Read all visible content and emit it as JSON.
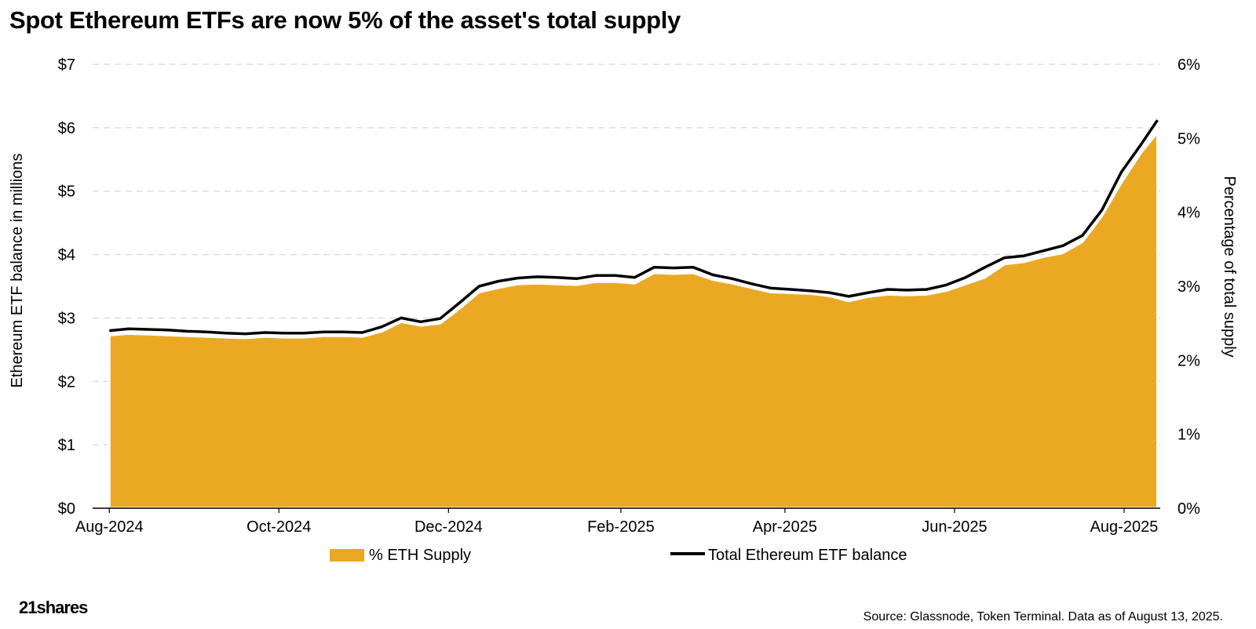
{
  "title": "Spot Ethereum ETFs are now 5% of the asset's total supply",
  "brand": "21shares",
  "source": "Source: Glassnode, Token Terminal. Data as of August 13, 2025.",
  "colors": {
    "area": "#EBA923",
    "line": "#000000",
    "grid": "#d9d9d9"
  },
  "chart_data": {
    "type": "area",
    "x_ticks": [
      "Aug-2024",
      "Oct-2024",
      "Dec-2024",
      "Feb-2025",
      "Apr-2025",
      "Jun-2025",
      "Aug-2025"
    ],
    "y_left": {
      "label": "Ethereum ETF balance in millions",
      "ticks": [
        "$0",
        "$1",
        "$2",
        "$3",
        "$4",
        "$5",
        "$6",
        "$7"
      ],
      "range": [
        0,
        7
      ]
    },
    "y_right": {
      "label": "Percentage of total supply",
      "ticks": [
        "0%",
        "1%",
        "2%",
        "3%",
        "4%",
        "5%",
        "6%"
      ],
      "range": [
        0,
        6
      ]
    },
    "grid": "horizontal dashed",
    "legend_position": "bottom",
    "x": [
      "2024-08-01",
      "2024-08-08",
      "2024-08-15",
      "2024-08-22",
      "2024-08-29",
      "2024-09-05",
      "2024-09-12",
      "2024-09-19",
      "2024-09-26",
      "2024-10-03",
      "2024-10-10",
      "2024-10-17",
      "2024-10-24",
      "2024-10-31",
      "2024-11-07",
      "2024-11-14",
      "2024-11-21",
      "2024-11-28",
      "2024-12-05",
      "2024-12-12",
      "2024-12-19",
      "2024-12-26",
      "2025-01-02",
      "2025-01-09",
      "2025-01-16",
      "2025-01-23",
      "2025-01-30",
      "2025-02-06",
      "2025-02-13",
      "2025-02-20",
      "2025-02-27",
      "2025-03-06",
      "2025-03-13",
      "2025-03-20",
      "2025-03-27",
      "2025-04-03",
      "2025-04-10",
      "2025-04-17",
      "2025-04-24",
      "2025-05-01",
      "2025-05-08",
      "2025-05-15",
      "2025-05-22",
      "2025-05-29",
      "2025-06-05",
      "2025-06-12",
      "2025-06-19",
      "2025-06-26",
      "2025-07-03",
      "2025-07-10",
      "2025-07-17",
      "2025-07-24",
      "2025-07-31",
      "2025-08-07",
      "2025-08-13"
    ],
    "series": [
      {
        "name": "% ETH Supply",
        "axis": "right",
        "values": [
          2.34,
          2.36,
          2.35,
          2.34,
          2.33,
          2.32,
          2.31,
          2.3,
          2.32,
          2.31,
          2.31,
          2.33,
          2.33,
          2.32,
          2.39,
          2.52,
          2.47,
          2.5,
          2.7,
          2.92,
          2.98,
          3.03,
          3.04,
          3.03,
          3.02,
          3.06,
          3.06,
          3.04,
          3.18,
          3.17,
          3.18,
          3.09,
          3.04,
          2.98,
          2.92,
          2.91,
          2.9,
          2.87,
          2.8,
          2.86,
          2.89,
          2.88,
          2.89,
          2.94,
          3.03,
          3.12,
          3.3,
          3.33,
          3.4,
          3.45,
          3.6,
          3.95,
          4.4,
          4.8,
          5.08
        ]
      },
      {
        "name": "Total Ethereum ETF balance",
        "axis": "left",
        "values": [
          2.8,
          2.83,
          2.82,
          2.81,
          2.79,
          2.78,
          2.76,
          2.75,
          2.77,
          2.76,
          2.76,
          2.78,
          2.78,
          2.77,
          2.86,
          3.0,
          2.94,
          2.99,
          3.24,
          3.5,
          3.58,
          3.63,
          3.65,
          3.64,
          3.62,
          3.67,
          3.67,
          3.64,
          3.8,
          3.79,
          3.8,
          3.68,
          3.62,
          3.54,
          3.47,
          3.45,
          3.43,
          3.4,
          3.34,
          3.4,
          3.45,
          3.44,
          3.45,
          3.52,
          3.64,
          3.8,
          3.95,
          3.98,
          4.06,
          4.14,
          4.3,
          4.7,
          5.3,
          5.73,
          6.12
        ]
      }
    ]
  }
}
